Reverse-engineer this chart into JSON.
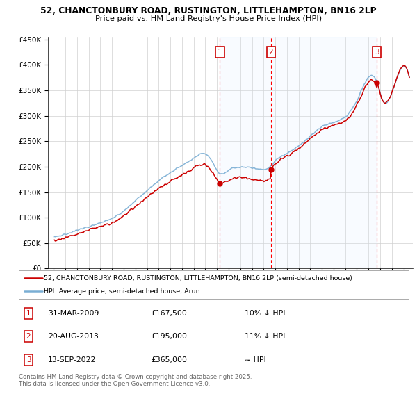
{
  "title_line1": "52, CHANCTONBURY ROAD, RUSTINGTON, LITTLEHAMPTON, BN16 2LP",
  "title_line2": "Price paid vs. HM Land Registry's House Price Index (HPI)",
  "ylim": [
    0,
    455000
  ],
  "yticks": [
    0,
    50000,
    100000,
    150000,
    200000,
    250000,
    300000,
    350000,
    400000,
    450000
  ],
  "ytick_labels": [
    "£0",
    "£50K",
    "£100K",
    "£150K",
    "£200K",
    "£250K",
    "£300K",
    "£350K",
    "£400K",
    "£450K"
  ],
  "sale_color": "#cc0000",
  "hpi_color": "#7aaed4",
  "shade_color": "#ddeeff",
  "transactions": [
    {
      "num": 1,
      "date": "31-MAR-2009",
      "price": 167500,
      "note": "10% ↓ HPI",
      "year": 2009.25
    },
    {
      "num": 2,
      "date": "20-AUG-2013",
      "price": 195000,
      "note": "11% ↓ HPI",
      "year": 2013.63
    },
    {
      "num": 3,
      "date": "13-SEP-2022",
      "price": 365000,
      "note": "≈ HPI",
      "year": 2022.71
    }
  ],
  "legend_sale_label": "52, CHANCTONBURY ROAD, RUSTINGTON, LITTLEHAMPTON, BN16 2LP (semi-detached house)",
  "legend_hpi_label": "HPI: Average price, semi-detached house, Arun",
  "footnote": "Contains HM Land Registry data © Crown copyright and database right 2025.\nThis data is licensed under the Open Government Licence v3.0."
}
